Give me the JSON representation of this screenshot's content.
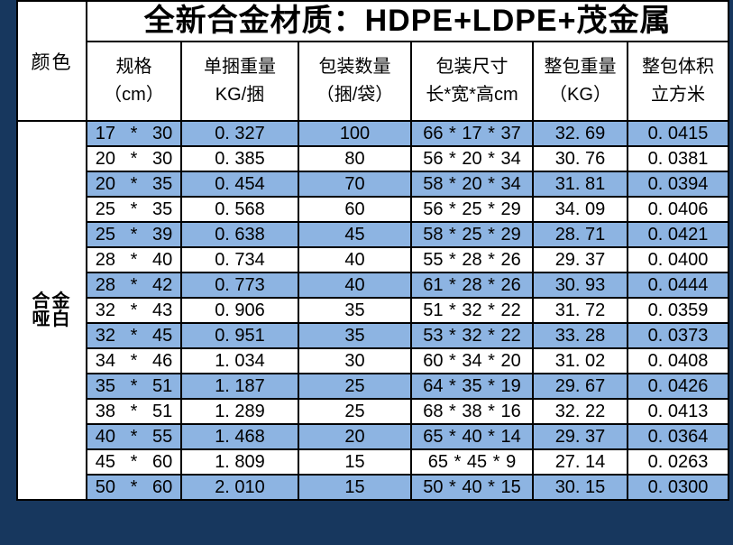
{
  "title": "全新合金材质：HDPE+LDPE+茂金属",
  "color_header": "颜色",
  "color_value": "合金\n哑白",
  "columns": [
    "规格\n（cm）",
    "单捆重量\nKG/捆",
    "包装数量\n（捆/袋）",
    "包装尺寸\n长*宽*高cm",
    "整包重量\n（KG）",
    "整包体积\n立方米"
  ],
  "rows": [
    {
      "spec": "17 * 30",
      "unit_weight": "0. 327",
      "qty": "100",
      "pack_size": "66 * 17 * 37",
      "pack_weight": "32. 69",
      "volume": "0. 0415"
    },
    {
      "spec": "20 * 30",
      "unit_weight": "0. 385",
      "qty": "80",
      "pack_size": "56 * 20 * 34",
      "pack_weight": "30. 76",
      "volume": "0. 0381"
    },
    {
      "spec": "20 * 35",
      "unit_weight": "0. 454",
      "qty": "70",
      "pack_size": "58 * 20 * 34",
      "pack_weight": "31. 81",
      "volume": "0. 0394"
    },
    {
      "spec": "25 * 35",
      "unit_weight": "0. 568",
      "qty": "60",
      "pack_size": "56 * 25 * 29",
      "pack_weight": "34. 09",
      "volume": "0. 0406"
    },
    {
      "spec": "25 * 39",
      "unit_weight": "0. 638",
      "qty": "45",
      "pack_size": "58 * 25 * 29",
      "pack_weight": "28. 71",
      "volume": "0. 0421"
    },
    {
      "spec": "28 * 40",
      "unit_weight": "0. 734",
      "qty": "40",
      "pack_size": "55 * 28 * 26",
      "pack_weight": "29. 37",
      "volume": "0. 0400"
    },
    {
      "spec": "28 * 42",
      "unit_weight": "0. 773",
      "qty": "40",
      "pack_size": "61 * 28 * 26",
      "pack_weight": "30. 93",
      "volume": "0. 0444"
    },
    {
      "spec": "32 * 43",
      "unit_weight": "0. 906",
      "qty": "35",
      "pack_size": "51 * 32 * 22",
      "pack_weight": "31. 72",
      "volume": "0. 0359"
    },
    {
      "spec": "32 * 45",
      "unit_weight": "0. 951",
      "qty": "35",
      "pack_size": "53 * 32 * 22",
      "pack_weight": "33. 28",
      "volume": "0. 0373"
    },
    {
      "spec": "34 * 46",
      "unit_weight": "1. 034",
      "qty": "30",
      "pack_size": "60 * 34 * 20",
      "pack_weight": "31. 02",
      "volume": "0. 0408"
    },
    {
      "spec": "35 * 51",
      "unit_weight": "1. 187",
      "qty": "25",
      "pack_size": "64 * 35 * 19",
      "pack_weight": "29. 67",
      "volume": "0. 0426"
    },
    {
      "spec": "38 * 51",
      "unit_weight": "1. 289",
      "qty": "25",
      "pack_size": "68 * 38 * 16",
      "pack_weight": "32. 22",
      "volume": "0. 0413"
    },
    {
      "spec": "40 * 55",
      "unit_weight": "1. 468",
      "qty": "20",
      "pack_size": "65 * 40 * 14",
      "pack_weight": "29. 37",
      "volume": "0. 0364"
    },
    {
      "spec": "45 * 60",
      "unit_weight": "1. 809",
      "qty": "15",
      "pack_size": "65 * 45 * 9",
      "pack_weight": "27. 14",
      "volume": "0. 0263"
    },
    {
      "spec": "50 * 60",
      "unit_weight": "2. 010",
      "qty": "15",
      "pack_size": "50 * 40 * 15",
      "pack_weight": "30. 15",
      "volume": "0. 0300"
    }
  ],
  "colors": {
    "frame_navy": "#17375E",
    "row_highlight_blue": "#8DB4E2",
    "row_white": "#FFFFFF",
    "border_black": "#000000",
    "text_black": "#000000"
  }
}
